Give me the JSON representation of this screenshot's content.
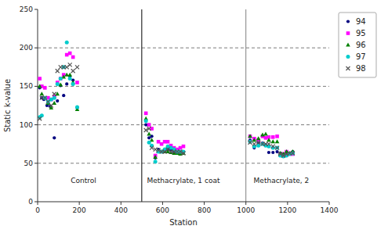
{
  "chart_data": {
    "type": "scatter",
    "x_label": "Station",
    "y_label": "Static k-value",
    "xlim": [
      0,
      1400
    ],
    "ylim": [
      0,
      250
    ],
    "xticks": [
      0,
      200,
      400,
      600,
      800,
      1000,
      1200,
      1400
    ],
    "yticks": [
      0,
      50,
      100,
      150,
      200,
      250
    ],
    "hlines": [
      50,
      100,
      150,
      200
    ],
    "vlines": [
      {
        "value": 500,
        "color": "black"
      },
      {
        "value": 1000,
        "color": "gray"
      }
    ],
    "annotations": [
      {
        "text": "Control",
        "x": 220,
        "y": 22
      },
      {
        "text": "Methacrylate, 1 coat",
        "x": 700,
        "y": 22
      },
      {
        "text": "Methacrylate, 2",
        "x": 1170,
        "y": 22
      }
    ],
    "legend": "right",
    "series": [
      {
        "name": "94",
        "color": "#000080",
        "marker": "point",
        "x": [
          10,
          20,
          30,
          45,
          60,
          80,
          95,
          110,
          125,
          140,
          155,
          170,
          190,
          520,
          535,
          548,
          565,
          580,
          595,
          610,
          625,
          640,
          655,
          670,
          685,
          700,
          1020,
          1040,
          1060,
          1080,
          1095,
          1110,
          1130,
          1150,
          1165,
          1180,
          1195,
          1210,
          1225
        ],
        "values": [
          148,
          135,
          133,
          125,
          124,
          83,
          131,
          151,
          138,
          153,
          163,
          158,
          122,
          100,
          83,
          85,
          57,
          68,
          65,
          65,
          68,
          67,
          65,
          65,
          64,
          65,
          80,
          70,
          77,
          76,
          74,
          64,
          64,
          65,
          63,
          62,
          63,
          63,
          65
        ]
      },
      {
        "name": "95",
        "color": "#FF00FF",
        "marker": "square",
        "x": [
          10,
          20,
          35,
          50,
          65,
          80,
          95,
          110,
          125,
          140,
          155,
          170,
          190,
          520,
          535,
          548,
          565,
          580,
          595,
          610,
          625,
          640,
          655,
          670,
          685,
          700,
          1020,
          1040,
          1060,
          1080,
          1095,
          1110,
          1130,
          1150,
          1165,
          1180,
          1195,
          1210,
          1225
        ],
        "values": [
          160,
          150,
          148,
          135,
          133,
          137,
          155,
          160,
          165,
          191,
          193,
          188,
          155,
          115,
          100,
          95,
          60,
          78,
          75,
          78,
          78,
          73,
          70,
          68,
          70,
          72,
          85,
          82,
          80,
          85,
          83,
          84,
          84,
          85,
          62,
          62,
          65,
          62,
          62
        ]
      },
      {
        "name": "96",
        "color": "#008000",
        "marker": "triangle",
        "x": [
          10,
          20,
          35,
          50,
          65,
          80,
          95,
          110,
          125,
          140,
          155,
          170,
          190,
          520,
          535,
          548,
          565,
          580,
          595,
          610,
          625,
          640,
          655,
          670,
          685,
          700,
          1020,
          1040,
          1060,
          1080,
          1095,
          1110,
          1130,
          1150,
          1165,
          1180,
          1195,
          1210,
          1225
        ],
        "values": [
          150,
          140,
          135,
          128,
          122,
          128,
          140,
          152,
          162,
          165,
          165,
          155,
          120,
          108,
          88,
          80,
          58,
          65,
          65,
          65,
          65,
          64,
          63,
          63,
          62,
          63,
          85,
          80,
          82,
          87,
          88,
          80,
          78,
          78,
          63,
          62,
          65,
          63,
          65
        ]
      },
      {
        "name": "97",
        "color": "#00CCCC",
        "marker": "circle",
        "x": [
          10,
          20,
          35,
          50,
          65,
          80,
          95,
          110,
          125,
          140,
          155,
          170,
          190,
          520,
          535,
          548,
          565,
          580,
          595,
          610,
          625,
          640,
          655,
          670,
          685,
          700,
          1020,
          1040,
          1060,
          1080,
          1095,
          1110,
          1130,
          1150,
          1165,
          1180,
          1195,
          1210,
          1225
        ],
        "values": [
          110,
          112,
          135,
          130,
          133,
          135,
          153,
          160,
          175,
          207,
          160,
          153,
          123,
          105,
          77,
          73,
          52,
          65,
          65,
          68,
          72,
          70,
          68,
          65,
          65,
          65,
          78,
          72,
          73,
          75,
          73,
          72,
          70,
          70,
          60,
          59,
          60,
          62,
          63
        ]
      },
      {
        "name": "98",
        "color": "#555555",
        "marker": "x",
        "x": [
          10,
          20,
          35,
          50,
          65,
          80,
          95,
          110,
          125,
          140,
          155,
          170,
          190,
          520,
          535,
          548,
          565,
          580,
          595,
          610,
          625,
          640,
          655,
          670,
          685,
          700,
          1020,
          1040,
          1060,
          1080,
          1095,
          1110,
          1130,
          1150,
          1165,
          1180,
          1195,
          1210,
          1225
        ],
        "values": [
          108,
          135,
          135,
          130,
          125,
          140,
          170,
          175,
          175,
          175,
          178,
          170,
          175,
          93,
          95,
          70,
          68,
          67,
          65,
          65,
          68,
          65,
          65,
          65,
          65,
          63,
          77,
          75,
          77,
          75,
          75,
          75,
          72,
          70,
          62,
          60,
          62,
          63,
          63
        ]
      }
    ]
  }
}
